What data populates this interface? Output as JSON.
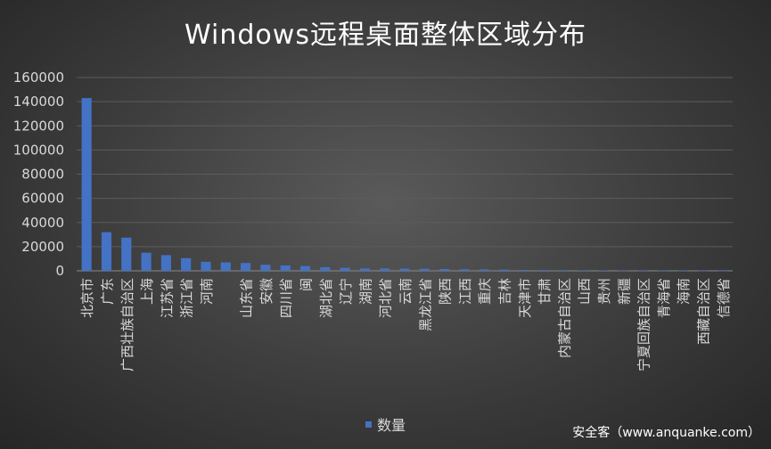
{
  "chart_data": {
    "type": "bar",
    "title": "Windows远程桌面整体区域分布",
    "xlabel": "",
    "ylabel": "",
    "ylim": [
      0,
      160000
    ],
    "yticks": [
      0,
      20000,
      40000,
      60000,
      80000,
      100000,
      120000,
      140000,
      160000
    ],
    "grid": true,
    "legend_position": "bottom",
    "series": [
      {
        "name": "数量",
        "color": "#4472c4"
      }
    ],
    "categories": [
      "北京市",
      "广东",
      "广西壮族自治区",
      "上海",
      "江苏省",
      "浙江省",
      "河南",
      "",
      "山东省",
      "安徽",
      "四川省",
      "闽",
      "湖北省",
      "辽宁",
      "湖南",
      "河北省",
      "云南",
      "黑龙江省",
      "陕西",
      "江西",
      "重庆",
      "吉林",
      "天津市",
      "甘肃",
      "内蒙古自治区",
      "山西",
      "贵州",
      "新疆",
      "宁夏回族自治区",
      "青海省",
      "海南",
      "西藏自治区",
      "信德省"
    ],
    "values": [
      143000,
      32000,
      27500,
      15000,
      13000,
      10500,
      7500,
      7000,
      6500,
      5000,
      4500,
      4000,
      3000,
      2500,
      2000,
      2000,
      1800,
      1700,
      1500,
      1300,
      1200,
      1000,
      700,
      600,
      500,
      400,
      400,
      300,
      300,
      250,
      200,
      150,
      100
    ]
  },
  "legend_label": "数量",
  "watermark": "安全客（www.anquanke.com）"
}
